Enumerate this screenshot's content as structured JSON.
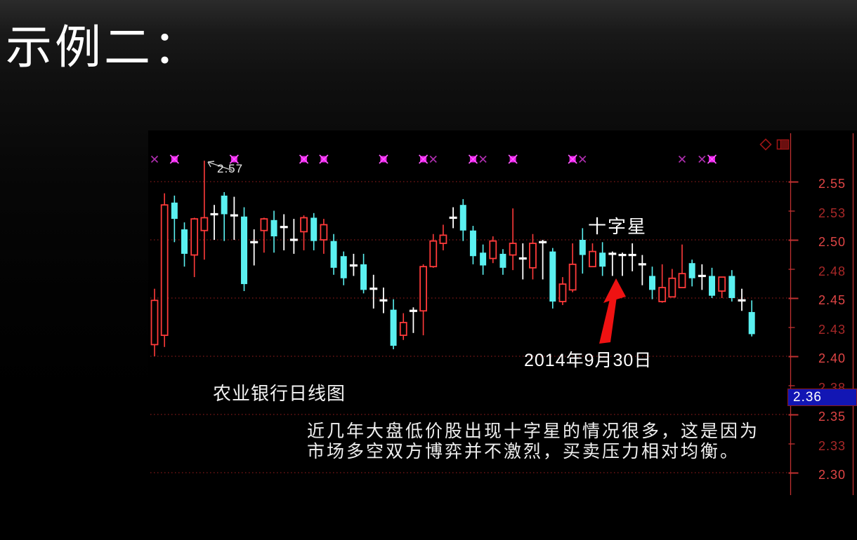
{
  "slide": {
    "title": "示例二："
  },
  "chart_data": {
    "type": "candlestick",
    "title": "农业银行日线图",
    "annotations": {
      "spike_price_label": "2.57",
      "doji_label": "十字星",
      "date_label": "2014年9月30日"
    },
    "caption": {
      "line1": "近几年大盘低价股出现十字星的情况很多，这是因为",
      "line2": "市场多空双方博弈并不激烈，买卖压力相对均衡。"
    },
    "y_axis_labels": [
      "2.55",
      "2.53",
      "2.50",
      "2.48",
      "2.45",
      "2.43",
      "2.40",
      "2.38",
      "2.35",
      "2.33",
      "2.30"
    ],
    "gridline_prices": [
      2.55,
      2.5,
      2.45,
      2.4,
      2.35,
      2.3
    ],
    "current_price_label": "2.36",
    "ylim": [
      2.29,
      2.575
    ],
    "legend": "red=up(hollow), cyan=down(filled), white=doji; magenta x = signal marks",
    "candles": [
      {
        "t": "u",
        "o": 2.41,
        "h": 2.458,
        "l": 2.4,
        "c": 2.448
      },
      {
        "t": "u",
        "o": 2.418,
        "h": 2.54,
        "l": 2.408,
        "c": 2.53
      },
      {
        "t": "d",
        "o": 2.532,
        "h": 2.538,
        "l": 2.498,
        "c": 2.518
      },
      {
        "t": "d",
        "o": 2.509,
        "h": 2.515,
        "l": 2.477,
        "c": 2.488
      },
      {
        "t": "u",
        "o": 2.487,
        "h": 2.519,
        "l": 2.468,
        "c": 2.518
      },
      {
        "t": "u",
        "o": 2.508,
        "h": 2.568,
        "l": 2.483,
        "c": 2.519
      },
      {
        "t": "x",
        "o": 2.522,
        "h": 2.53,
        "l": 2.5,
        "c": 2.522
      },
      {
        "t": "d",
        "o": 2.538,
        "h": 2.541,
        "l": 2.499,
        "c": 2.522
      },
      {
        "t": "x",
        "o": 2.521,
        "h": 2.537,
        "l": 2.5,
        "c": 2.521
      },
      {
        "t": "d",
        "o": 2.52,
        "h": 2.528,
        "l": 2.456,
        "c": 2.462
      },
      {
        "t": "x",
        "o": 2.498,
        "h": 2.509,
        "l": 2.478,
        "c": 2.498
      },
      {
        "t": "u",
        "o": 2.508,
        "h": 2.519,
        "l": 2.489,
        "c": 2.518
      },
      {
        "t": "d",
        "o": 2.517,
        "h": 2.525,
        "l": 2.489,
        "c": 2.503
      },
      {
        "t": "x",
        "o": 2.511,
        "h": 2.522,
        "l": 2.491,
        "c": 2.511
      },
      {
        "t": "x",
        "o": 2.5,
        "h": 2.518,
        "l": 2.488,
        "c": 2.5
      },
      {
        "t": "u",
        "o": 2.507,
        "h": 2.521,
        "l": 2.491,
        "c": 2.519
      },
      {
        "t": "d",
        "o": 2.519,
        "h": 2.523,
        "l": 2.491,
        "c": 2.499
      },
      {
        "t": "u",
        "o": 2.5,
        "h": 2.518,
        "l": 2.488,
        "c": 2.513
      },
      {
        "t": "d",
        "o": 2.499,
        "h": 2.505,
        "l": 2.47,
        "c": 2.476
      },
      {
        "t": "d",
        "o": 2.486,
        "h": 2.49,
        "l": 2.461,
        "c": 2.467
      },
      {
        "t": "x",
        "o": 2.478,
        "h": 2.488,
        "l": 2.469,
        "c": 2.478
      },
      {
        "t": "d",
        "o": 2.479,
        "h": 2.488,
        "l": 2.454,
        "c": 2.457
      },
      {
        "t": "x",
        "o": 2.458,
        "h": 2.47,
        "l": 2.441,
        "c": 2.458
      },
      {
        "t": "x",
        "o": 2.448,
        "h": 2.459,
        "l": 2.437,
        "c": 2.448
      },
      {
        "t": "d",
        "o": 2.44,
        "h": 2.449,
        "l": 2.406,
        "c": 2.409
      },
      {
        "t": "u",
        "o": 2.418,
        "h": 2.437,
        "l": 2.414,
        "c": 2.429
      },
      {
        "t": "x",
        "o": 2.439,
        "h": 2.442,
        "l": 2.42,
        "c": 2.439
      },
      {
        "t": "u",
        "o": 2.439,
        "h": 2.479,
        "l": 2.418,
        "c": 2.477
      },
      {
        "t": "u",
        "o": 2.477,
        "h": 2.505,
        "l": 2.476,
        "c": 2.499
      },
      {
        "t": "u",
        "o": 2.497,
        "h": 2.513,
        "l": 2.491,
        "c": 2.504
      },
      {
        "t": "x",
        "o": 2.519,
        "h": 2.528,
        "l": 2.51,
        "c": 2.519
      },
      {
        "t": "d",
        "o": 2.53,
        "h": 2.535,
        "l": 2.499,
        "c": 2.508
      },
      {
        "t": "d",
        "o": 2.508,
        "h": 2.512,
        "l": 2.479,
        "c": 2.486
      },
      {
        "t": "d",
        "o": 2.489,
        "h": 2.496,
        "l": 2.47,
        "c": 2.478
      },
      {
        "t": "u",
        "o": 2.484,
        "h": 2.503,
        "l": 2.48,
        "c": 2.499
      },
      {
        "t": "d",
        "o": 2.488,
        "h": 2.492,
        "l": 2.47,
        "c": 2.476
      },
      {
        "t": "u",
        "o": 2.487,
        "h": 2.527,
        "l": 2.474,
        "c": 2.497
      },
      {
        "t": "x",
        "o": 2.484,
        "h": 2.497,
        "l": 2.466,
        "c": 2.484
      },
      {
        "t": "u",
        "o": 2.476,
        "h": 2.505,
        "l": 2.466,
        "c": 2.497
      },
      {
        "t": "x",
        "o": 2.498,
        "h": 2.5,
        "l": 2.466,
        "c": 2.498
      },
      {
        "t": "d",
        "o": 2.49,
        "h": 2.493,
        "l": 2.441,
        "c": 2.447
      },
      {
        "t": "u",
        "o": 2.447,
        "h": 2.468,
        "l": 2.444,
        "c": 2.462
      },
      {
        "t": "u",
        "o": 2.457,
        "h": 2.497,
        "l": 2.455,
        "c": 2.479
      },
      {
        "t": "d",
        "o": 2.5,
        "h": 2.51,
        "l": 2.471,
        "c": 2.487
      },
      {
        "t": "u",
        "o": 2.477,
        "h": 2.497,
        "l": 2.477,
        "c": 2.49
      },
      {
        "t": "d",
        "o": 2.489,
        "h": 2.498,
        "l": 2.469,
        "c": 2.477
      },
      {
        "t": "x",
        "o": 2.488,
        "h": 2.49,
        "l": 2.469,
        "c": 2.488
      },
      {
        "t": "x",
        "o": 2.487,
        "h": 2.489,
        "l": 2.469,
        "c": 2.487
      },
      {
        "t": "x",
        "o": 2.487,
        "h": 2.497,
        "l": 2.473,
        "c": 2.487
      },
      {
        "t": "x",
        "o": 2.479,
        "h": 2.487,
        "l": 2.461,
        "c": 2.479
      },
      {
        "t": "d",
        "o": 2.469,
        "h": 2.477,
        "l": 2.449,
        "c": 2.457
      },
      {
        "t": "u",
        "o": 2.447,
        "h": 2.479,
        "l": 2.446,
        "c": 2.459
      },
      {
        "t": "u",
        "o": 2.451,
        "h": 2.475,
        "l": 2.451,
        "c": 2.467
      },
      {
        "t": "u",
        "o": 2.459,
        "h": 2.496,
        "l": 2.459,
        "c": 2.471
      },
      {
        "t": "d",
        "o": 2.48,
        "h": 2.483,
        "l": 2.46,
        "c": 2.467
      },
      {
        "t": "x",
        "o": 2.469,
        "h": 2.479,
        "l": 2.457,
        "c": 2.469
      },
      {
        "t": "d",
        "o": 2.469,
        "h": 2.476,
        "l": 2.45,
        "c": 2.452
      },
      {
        "t": "u",
        "o": 2.456,
        "h": 2.468,
        "l": 2.45,
        "c": 2.468
      },
      {
        "t": "d",
        "o": 2.469,
        "h": 2.474,
        "l": 2.447,
        "c": 2.45
      },
      {
        "t": "x",
        "o": 2.448,
        "h": 2.458,
        "l": 2.439,
        "c": 2.448
      },
      {
        "t": "d",
        "o": 2.438,
        "h": 2.448,
        "l": 2.417,
        "c": 2.419
      }
    ],
    "doji_star_candle_index": 46,
    "sell_marks": [
      {
        "index": 0,
        "bright": false
      },
      {
        "index": 2,
        "bright": true
      },
      {
        "index": 8,
        "bright": true
      },
      {
        "index": 15,
        "bright": true
      },
      {
        "index": 17,
        "bright": true
      },
      {
        "index": 23,
        "bright": true
      },
      {
        "index": 27,
        "bright": true
      },
      {
        "index": 28,
        "bright": false
      },
      {
        "index": 32,
        "bright": true
      },
      {
        "index": 33,
        "bright": false
      },
      {
        "index": 36,
        "bright": true
      },
      {
        "index": 42,
        "bright": true
      },
      {
        "index": 43,
        "bright": false
      },
      {
        "index": 53,
        "bright": false
      },
      {
        "index": 55,
        "bright": false
      },
      {
        "index": 56,
        "bright": true
      }
    ],
    "colors": {
      "up": "#ff3a3a",
      "down": "#5af0f0",
      "doji": "#ffffff",
      "grid": "#a32020",
      "axis": "#c03030",
      "axis_label_major": "#e04545",
      "axis_label_minor": "#a82828",
      "mark_bright": "#e816e8",
      "mark_bright_line": "#ff5aff",
      "mark_dim": "#b02fb0",
      "arrow": "#ef1212",
      "pointer": "#cccccc",
      "icon": "#9c1414",
      "price_box_bg": "#1216b4",
      "price_box_text": "#ffffff"
    }
  }
}
